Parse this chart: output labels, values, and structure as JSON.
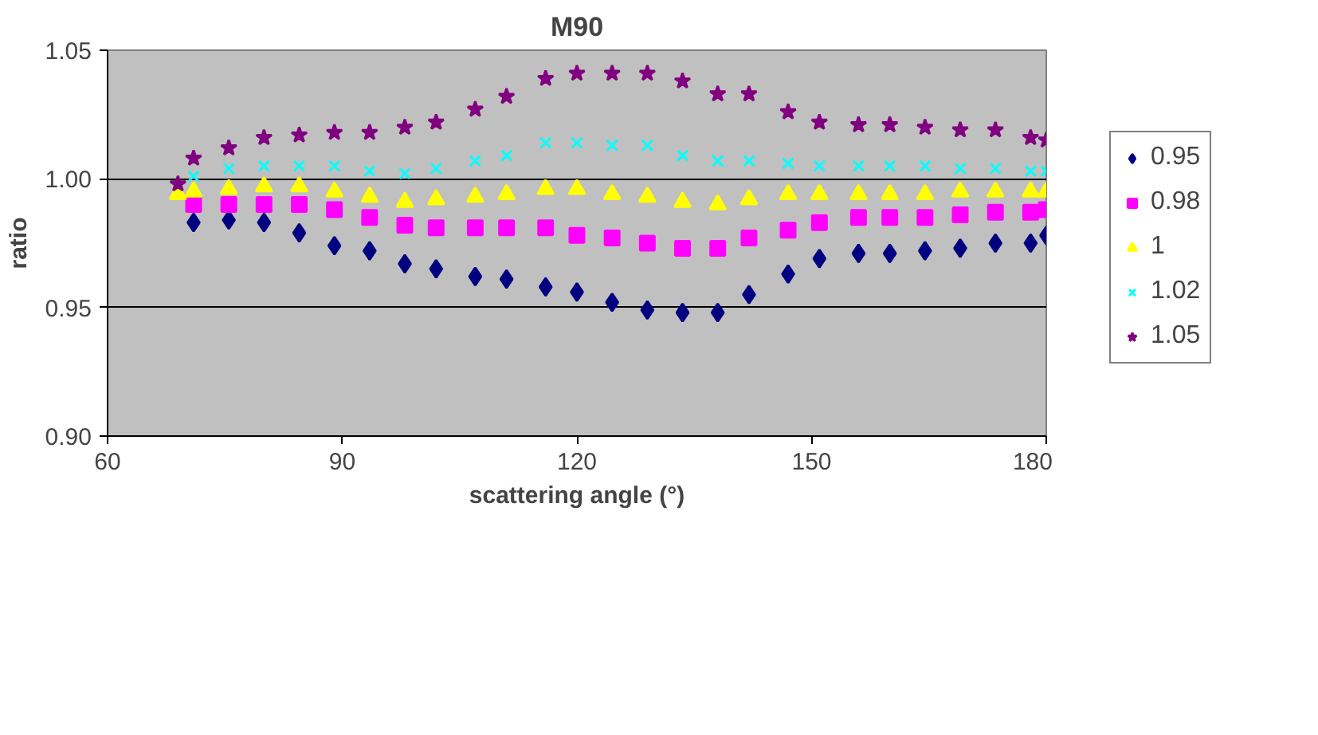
{
  "chart_data": {
    "type": "scatter",
    "title": "M90",
    "xlabel": "scattering angle (°)",
    "ylabel": "ratio",
    "x": [
      69,
      71,
      75.5,
      80,
      84.5,
      89,
      93.5,
      98,
      102,
      107,
      111,
      116,
      120,
      124.5,
      129,
      133.5,
      138,
      142,
      147,
      151,
      156,
      160,
      164.5,
      169,
      173.5,
      178,
      180
    ],
    "series": [
      {
        "name": "0.95",
        "color": "#000080",
        "marker": "diamond",
        "values": [
          null,
          0.983,
          0.984,
          0.983,
          0.979,
          0.974,
          0.972,
          0.967,
          0.965,
          0.962,
          0.961,
          0.958,
          0.956,
          0.952,
          0.949,
          0.948,
          0.948,
          0.955,
          0.963,
          0.969,
          0.971,
          0.971,
          0.972,
          0.973,
          0.975,
          0.975,
          0.978
        ]
      },
      {
        "name": "0.98",
        "color": "#ff00ff",
        "marker": "square",
        "values": [
          null,
          0.99,
          0.99,
          0.99,
          0.99,
          0.988,
          0.985,
          0.982,
          0.981,
          0.981,
          0.981,
          0.981,
          0.978,
          0.977,
          0.975,
          0.973,
          0.973,
          0.977,
          0.98,
          0.983,
          0.985,
          0.985,
          0.985,
          0.986,
          0.987,
          0.987,
          0.988
        ]
      },
      {
        "name": "1",
        "color": "#ffff00",
        "marker": "triangle",
        "values": [
          0.994,
          0.995,
          0.996,
          0.997,
          0.997,
          0.995,
          0.993,
          0.991,
          0.992,
          0.993,
          0.994,
          0.996,
          0.996,
          0.994,
          0.993,
          0.991,
          0.99,
          0.992,
          0.994,
          0.994,
          0.994,
          0.994,
          0.994,
          0.995,
          0.995,
          0.995,
          0.995
        ]
      },
      {
        "name": "1.02",
        "color": "#00ffff",
        "marker": "cross",
        "values": [
          null,
          1.001,
          1.004,
          1.005,
          1.005,
          1.005,
          1.003,
          1.002,
          1.004,
          1.007,
          1.009,
          1.014,
          1.014,
          1.013,
          1.013,
          1.009,
          1.007,
          1.007,
          1.006,
          1.005,
          1.005,
          1.005,
          1.005,
          1.004,
          1.004,
          1.003,
          1.003
        ]
      },
      {
        "name": "1.05",
        "color": "#800080",
        "marker": "star",
        "values": [
          0.998,
          1.008,
          1.012,
          1.016,
          1.017,
          1.018,
          1.018,
          1.02,
          1.022,
          1.027,
          1.032,
          1.039,
          1.041,
          1.041,
          1.041,
          1.038,
          1.033,
          1.033,
          1.026,
          1.022,
          1.021,
          1.021,
          1.02,
          1.019,
          1.019,
          1.016,
          1.015
        ]
      }
    ],
    "xlim": [
      60,
      180
    ],
    "xticks": [
      60,
      90,
      120,
      150,
      180
    ],
    "ylim": [
      0.9,
      1.05
    ],
    "yticks": [
      {
        "value": 0.9,
        "label": "0.90"
      },
      0.95,
      {
        "value": 1.0,
        "label": "1.00"
      },
      1.05
    ],
    "grid": "y",
    "legend": "right"
  }
}
